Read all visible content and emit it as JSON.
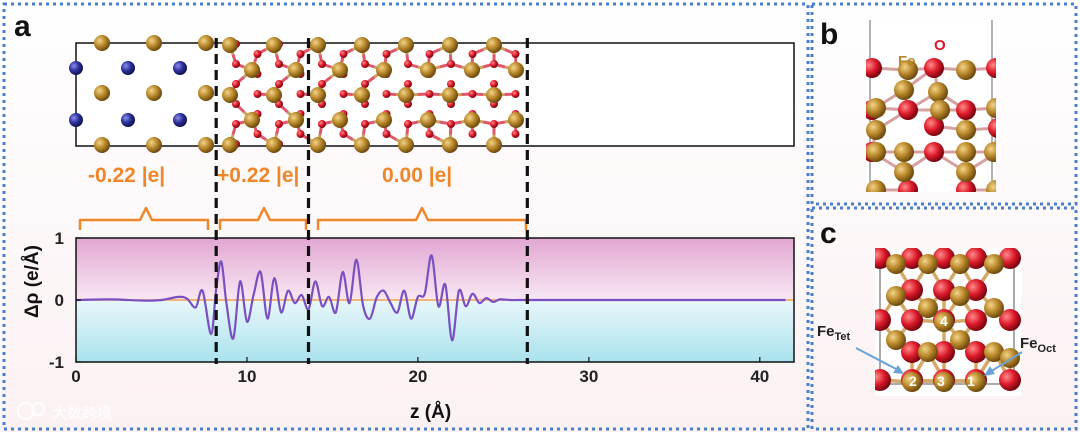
{
  "panels": {
    "a": "a",
    "b": "b",
    "c": "c"
  },
  "charges": [
    "-0.22 |e|",
    "+0.22 |e|",
    "0.00 |e|"
  ],
  "atom_labels": {
    "fe": "Fe",
    "o": "O"
  },
  "sites": {
    "fe_tet": {
      "main": "Fe",
      "sub": "Tet"
    },
    "fe_oct": {
      "main": "Fe",
      "sub": "Oct"
    },
    "numbers": [
      "1",
      "2",
      "3",
      "4"
    ]
  },
  "watermark": "大数跨境",
  "colors": {
    "fe": "#b8872a",
    "o": "#dd1a2a",
    "substrate": "#2c2f9a",
    "bond_fe": "#c9a25a",
    "bond_o": "#e0566a",
    "charge": "#f0862a",
    "curve": "#7a4fc2",
    "frame": "#4a7fc9"
  },
  "chart_data": {
    "type": "line",
    "xlabel": "z (Å)",
    "ylabel": "Δρ (e/Å)",
    "xlim": [
      0,
      42
    ],
    "ylim": [
      -1,
      1
    ],
    "xticks": [
      0,
      10,
      20,
      30,
      40
    ],
    "yticks": [
      1,
      0,
      -1
    ],
    "interfaces": [
      8.2,
      13.6,
      26.4
    ],
    "series": [
      {
        "x": [
          0,
          2,
          4,
          5,
          6,
          6.5,
          7,
          7.4,
          7.9,
          8.2,
          8.5,
          8.8,
          9.2,
          9.6,
          10,
          10.4,
          10.8,
          11.2,
          11.6,
          12,
          12.4,
          12.8,
          13.2,
          13.6,
          14,
          14.4,
          14.8,
          15.2,
          15.6,
          16,
          16.4,
          16.8,
          17.2,
          17.6,
          18,
          18.4,
          18.8,
          19.2,
          19.6,
          20,
          20.4,
          20.8,
          21.2,
          21.6,
          22,
          22.4,
          22.8,
          23.2,
          23.6,
          24,
          24.4,
          24.8,
          25.4,
          26,
          27,
          30,
          35,
          40,
          41.5
        ],
        "y": [
          0,
          0.01,
          -0.01,
          0,
          0.05,
          0.02,
          -0.12,
          0.15,
          -0.55,
          0.18,
          0.62,
          -0.05,
          -0.62,
          0.3,
          -0.35,
          0.1,
          0.45,
          -0.3,
          0.35,
          -0.2,
          0.15,
          -0.05,
          0.08,
          -0.15,
          0.3,
          -0.1,
          0.05,
          -0.2,
          0.45,
          -0.05,
          0.65,
          -0.1,
          -0.3,
          0.05,
          0.15,
          -0.05,
          -0.2,
          0.15,
          -0.3,
          0.05,
          0.1,
          0.72,
          -0.1,
          0.25,
          -0.65,
          0.15,
          -0.1,
          0.1,
          -0.05,
          0.03,
          -0.03,
          0.01,
          0,
          0,
          0,
          0,
          0,
          0,
          0
        ]
      }
    ]
  }
}
